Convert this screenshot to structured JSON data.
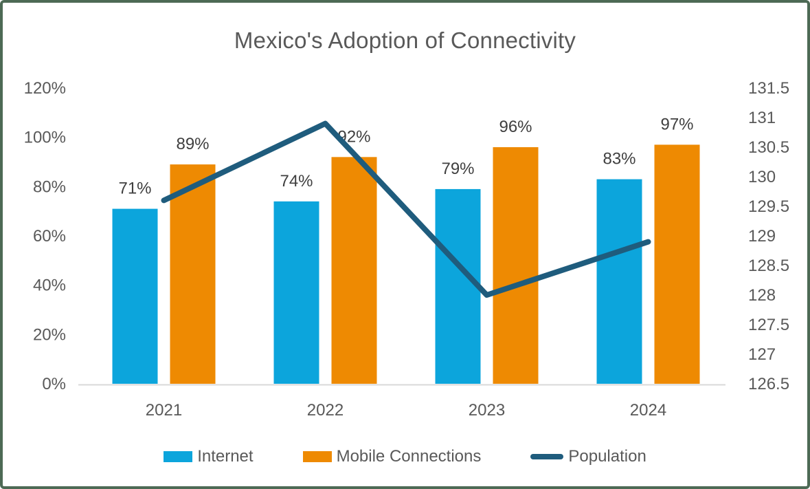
{
  "title": "Mexico's Adoption of Connectivity",
  "chart_data": {
    "type": "bar",
    "subtype": "combo-bar-line-dual-axis",
    "title": "Mexico's Adoption of Connectivity",
    "categories": [
      "2021",
      "2022",
      "2023",
      "2024"
    ],
    "series": [
      {
        "name": "Internet",
        "type": "bar",
        "axis": "left",
        "color": "#0ca5dc",
        "values": [
          71,
          74,
          79,
          83
        ],
        "data_labels": [
          "71%",
          "74%",
          "79%",
          "83%"
        ]
      },
      {
        "name": "Mobile Connections",
        "type": "bar",
        "axis": "left",
        "color": "#ee8a02",
        "values": [
          89,
          92,
          96,
          97
        ],
        "data_labels": [
          "89%",
          "92%",
          "96%",
          "97%"
        ]
      },
      {
        "name": "Population",
        "type": "line",
        "axis": "right",
        "color": "#1f5c7d",
        "values": [
          129.6,
          130.9,
          128.0,
          128.9
        ]
      }
    ],
    "left_axis": {
      "min": 0,
      "max": 120,
      "step": 20,
      "tick_labels": [
        "0%",
        "20%",
        "40%",
        "60%",
        "80%",
        "100%",
        "120%"
      ]
    },
    "right_axis": {
      "min": 126.5,
      "max": 131.5,
      "step": 0.5,
      "tick_labels": [
        "126.5",
        "127",
        "127.5",
        "128",
        "128.5",
        "129",
        "129.5",
        "130",
        "130.5",
        "131",
        "131.5"
      ]
    },
    "grid": false,
    "legend_position": "bottom",
    "axis_line_color": "#d9d9d9",
    "text_color": "#595959",
    "data_label_color": "#3f3f3f",
    "frame_border_color": "#4d6a55"
  }
}
